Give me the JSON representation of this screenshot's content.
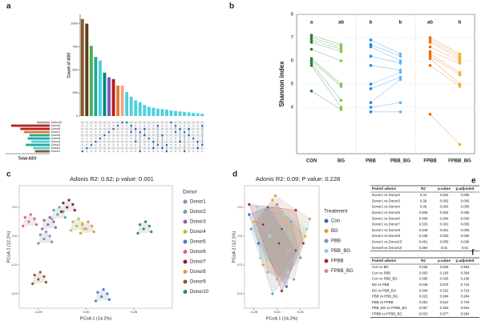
{
  "panel_labels": [
    "a",
    "b",
    "c",
    "d",
    "e",
    "f"
  ],
  "chart_data": [
    {
      "type": "upset",
      "y_label": "Count of ASV",
      "x_label": "Total ASV",
      "values": [
        1050,
        1000,
        760,
        640,
        600,
        470,
        420,
        400,
        330,
        330,
        260,
        210,
        170,
        150,
        120,
        100,
        90,
        80,
        75,
        70,
        60,
        55,
        50,
        45,
        40,
        35,
        30,
        25
      ],
      "colors": [
        "#8b5a2b",
        "#5a3a1a",
        "#4caf50",
        "#26a69a",
        "#4dd0e1",
        "#00897b",
        "#7e57c2",
        "#b71c1c",
        "#e07b39",
        "#f4a582",
        "#4dd0e1",
        "#4dd0e1",
        "#4dd0e1",
        "#4dd0e1",
        "#4dd0e1",
        "#4dd0e1",
        "#4dd0e1",
        "#4dd0e1",
        "#4dd0e1",
        "#4dd0e1",
        "#4dd0e1",
        "#4dd0e1",
        "#4dd0e1",
        "#4dd0e1",
        "#4dd0e1",
        "#4dd0e1",
        "#4dd0e1",
        "#4dd0e1"
      ],
      "ylim": [
        0,
        1100
      ],
      "yticks": [
        0,
        250,
        500,
        750,
        1000
      ],
      "sets": [
        "Donor10",
        "Donor9",
        "Donor8",
        "Donor7",
        "Donor6",
        "Donor5",
        "Donor4",
        "Donor3",
        "Donor2",
        "Donor1"
      ],
      "set_sizes": [
        350,
        1050,
        800,
        700,
        550,
        600,
        500,
        650,
        450,
        400
      ],
      "set_colors": [
        "#b0b0b0",
        "#b22222",
        "#b22222",
        "#e07b39",
        "#26a69a",
        "#26a69a",
        "#4dd0e1",
        "#26a69a",
        "#4dd0e1",
        "#8b5a2b"
      ],
      "set_xlim": [
        0,
        1200
      ]
    },
    {
      "type": "paired-dot",
      "y_label": "Shannon index",
      "categories": [
        "CON",
        "BG",
        "PBB",
        "PBB_BG",
        "FPBB",
        "FPBB_BG"
      ],
      "letters": [
        "a",
        "ab",
        "b",
        "b",
        "ab",
        "b"
      ],
      "values": [
        [
          7.1,
          7.0,
          6.9,
          6.8,
          6.5,
          6.1,
          6.0,
          5.9,
          5.8,
          4.7
        ],
        [
          6.7,
          6.6,
          6.5,
          6.4,
          6.0,
          5.0,
          4.9,
          4.3,
          4.0,
          3.9
        ],
        [
          6.9,
          6.7,
          6.6,
          6.2,
          5.8,
          5.0,
          4.8,
          4.2,
          4.0,
          3.8
        ],
        [
          6.3,
          6.2,
          6.0,
          5.9,
          5.6,
          5.5,
          5.3,
          5.2,
          4.2,
          3.8
        ],
        [
          7.0,
          6.9,
          6.8,
          6.6,
          6.4,
          6.3,
          6.2,
          6.1,
          5.8,
          3.7
        ],
        [
          6.3,
          6.2,
          6.1,
          6.0,
          5.9,
          5.5,
          5.4,
          5.0,
          4.9,
          2.4
        ]
      ],
      "colors": [
        "#2e7d32",
        "#8bc34a",
        "#1e88e5",
        "#64b5f6",
        "#ef6c00",
        "#ffa726"
      ],
      "ylim": [
        2,
        8
      ],
      "yticks": [
        4,
        5,
        6,
        7,
        8
      ],
      "grid": true
    },
    {
      "type": "scatter",
      "title": "Adonis R2: 0.62; p value: 0.001",
      "x_label": "PCoA 1 (14.2%)",
      "y_label": "PCoA 2 (12.1%)",
      "legend_title": "Donor",
      "xlim": [
        -0.35,
        0.45
      ],
      "xticks": [
        -0.25,
        {
          "value": 0,
          "label": "0.00"
        },
        0.25
      ],
      "ylim": [
        -0.5,
        0.35
      ],
      "yticks": [
        -0.4,
        -0.2,
        {
          "value": 0,
          "label": "0.0"
        },
        0.2
      ],
      "hull_color": "#d0d0d0",
      "series": [
        {
          "name": "Donor1",
          "color": "#7f8fbf",
          "x": [
            -0.22,
            -0.19,
            -0.24,
            -0.18,
            -0.25,
            -0.21
          ],
          "y": [
            -0.02,
            0,
            0.01,
            -0.04,
            -0.05,
            0.03
          ]
        },
        {
          "name": "Donor2",
          "color": "#5aa9a8",
          "x": [
            -0.15,
            -0.12,
            -0.17,
            -0.11,
            -0.18,
            -0.14
          ],
          "y": [
            0.15,
            0.17,
            0.18,
            0.13,
            0.12,
            0.2
          ]
        },
        {
          "name": "Donor3",
          "color": "#9b59b6",
          "x": [
            -0.2,
            -0.17,
            -0.22,
            -0.16,
            -0.23,
            -0.19
          ],
          "y": [
            0.08,
            0.1,
            0.11,
            0.06,
            0.05,
            0.13
          ]
        },
        {
          "name": "Donor4",
          "color": "#b8c32a",
          "x": [
            -0.05,
            -0.02,
            -0.07,
            -0.01,
            -0.08,
            -0.04
          ],
          "y": [
            0.07,
            0.09,
            0.1,
            0.05,
            0.04,
            0.12
          ]
        },
        {
          "name": "Donor5",
          "color": "#4a7bd0",
          "x": [
            0.08,
            0.11,
            0.06,
            0.12,
            0.05,
            0.09
          ],
          "y": [
            -0.42,
            -0.4,
            -0.39,
            -0.44,
            -0.45,
            -0.37
          ]
        },
        {
          "name": "Donor6",
          "color": "#e05a9a",
          "x": [
            -0.3,
            -0.27,
            -0.32,
            -0.26,
            -0.33,
            -0.29
          ],
          "y": [
            0.1,
            0.12,
            0.13,
            0.08,
            0.07,
            0.15
          ]
        },
        {
          "name": "Donor7",
          "color": "#8b1a3a",
          "x": [
            -0.1,
            -0.07,
            -0.12,
            -0.06,
            -0.13,
            -0.09
          ],
          "y": [
            0.2,
            0.22,
            0.23,
            0.18,
            0.17,
            0.25
          ]
        },
        {
          "name": "Donor8",
          "color": "#e89a2c",
          "x": [
            0,
            0.03,
            -0.02,
            0.04,
            -0.03,
            0.01
          ],
          "y": [
            0.05,
            0.07,
            0.08,
            0.03,
            0.02,
            0.1
          ]
        },
        {
          "name": "Donor9",
          "color": "#a0522d",
          "x": [
            -0.25,
            -0.22,
            -0.27,
            -0.21,
            -0.28,
            -0.24
          ],
          "y": [
            -0.3,
            -0.28,
            -0.27,
            -0.32,
            -0.33,
            -0.25
          ]
        },
        {
          "name": "Donor10",
          "color": "#2e8b57",
          "x": [
            0.3,
            0.33,
            0.28,
            0.34,
            0.27,
            0.31
          ],
          "y": [
            0.05,
            0.07,
            0.08,
            0.03,
            0.02,
            0.1
          ]
        }
      ]
    },
    {
      "type": "scatter",
      "title": "Adonis R2: 0.09; P value: 0.228",
      "x_label": "PCoA 1 (14.2%)",
      "y_label": "PCoA 2 (12.1%)",
      "legend_title": "Treatment",
      "xlim": [
        -0.35,
        0.45
      ],
      "xticks": [
        -0.25,
        {
          "value": 0,
          "label": "0.00"
        },
        0.25
      ],
      "ylim": [
        -0.5,
        0.35
      ],
      "yticks": [
        -0.4,
        -0.2,
        {
          "value": 0,
          "label": "0.0"
        },
        0.2
      ],
      "series": [
        {
          "name": "Con",
          "color": "#3a64ad",
          "x": [
            -0.3,
            -0.1,
            0.05,
            0.2,
            -0.2,
            0.1
          ],
          "y": [
            0.15,
            0.2,
            0.05,
            -0.1,
            -0.05,
            -0.35
          ]
        },
        {
          "name": "BG",
          "color": "#e0a030",
          "x": [
            -0.25,
            -0.05,
            0.1,
            0.3,
            -0.15,
            0
          ],
          "y": [
            0.1,
            0.25,
            0.1,
            0,
            -0.2,
            -0.3
          ]
        },
        {
          "name": "PBB",
          "color": "#7a93c8",
          "x": [
            -0.28,
            -0.12,
            0,
            0.15,
            0.25,
            -0.05
          ],
          "y": [
            0.05,
            0.18,
            0.22,
            0.1,
            -0.15,
            -0.4
          ]
        },
        {
          "name": "PBB_BG",
          "color": "#7fd6d0",
          "x": [
            -0.22,
            -0.08,
            0.08,
            0.32,
            0.12,
            -0.18
          ],
          "y": [
            0.2,
            0,
            0.15,
            0.05,
            -0.25,
            -0.15
          ]
        },
        {
          "name": "FPBB",
          "color": "#9b2d3a",
          "x": [
            -0.3,
            -0.15,
            0.02,
            0.2,
            0.28,
            0.05
          ],
          "y": [
            0.22,
            0.08,
            -0.05,
            0.18,
            -0.05,
            -0.38
          ]
        },
        {
          "name": "FPBB_BG",
          "color": "#c49a7a",
          "x": [
            -0.2,
            -0.02,
            0.12,
            0.35,
            0.18,
            -0.1
          ],
          "y": [
            0.12,
            0.28,
            -0.1,
            0.12,
            -0.3,
            -0.25
          ]
        }
      ]
    }
  ],
  "tables": {
    "e": {
      "header": [
        "Paired  adonis",
        "R2",
        "p.value",
        "p.adjusted"
      ],
      "rows": [
        [
          "Donor1 vs Donor2",
          "0.34",
          "0.004",
          "0.005"
        ],
        [
          "Donor1 vs Donor3",
          "0.39",
          "0.002",
          "0.005"
        ],
        [
          "Donor1 vs Donor4",
          "0.36",
          "0.004",
          "0.005"
        ],
        [
          "Donor1 vs Donor5",
          "0.509",
          "0.004",
          "0.005"
        ],
        [
          "Donor1 vs Donor6",
          "0.469",
          "0.004",
          "0.005"
        ],
        [
          "Donor1 vs Donor7",
          "0.533",
          "0.001",
          "0.005"
        ],
        [
          "Donor1 vs Donor8",
          "0.548",
          "0.001",
          "0.005"
        ],
        [
          "Donor1 vs Donor9",
          "0.438",
          "0.003",
          "0.005"
        ],
        [
          "Donor1 vs Donor10",
          "0.481",
          "0.005",
          "0.006"
        ],
        [
          "Donor8 vs Donor10",
          "0.364",
          "0.01",
          "0.01"
        ]
      ]
    },
    "f": {
      "header": [
        "Paired  adonis",
        "R2",
        "p.value",
        "p.adjusted"
      ],
      "rows": [
        [
          "Con vs BG",
          "0.036",
          "0.826",
          "0.953"
        ],
        [
          "Con vs PBB",
          "0.063",
          "0.165",
          "0.394"
        ],
        [
          "Con vs PBB_BG",
          "0.085",
          "0.026",
          "0.195"
        ],
        [
          "BG vs PBB",
          "0.049",
          "0.575",
          "0.719"
        ],
        [
          "BG vs PBB_BG",
          "0.049",
          "0.532",
          "0.719"
        ],
        [
          "PBB vs PBB_BG",
          "0.022",
          "0.984",
          "0.984"
        ],
        [
          "PBB vs FPBB",
          "0.052",
          "0.510",
          "0.719"
        ],
        [
          "PBB_BG vs FPBB_BG",
          "0.057",
          "0.353",
          "0.662"
        ],
        [
          "FPBB vs FPBB_BG",
          "0.023",
          "0.977",
          "0.984"
        ]
      ]
    }
  }
}
